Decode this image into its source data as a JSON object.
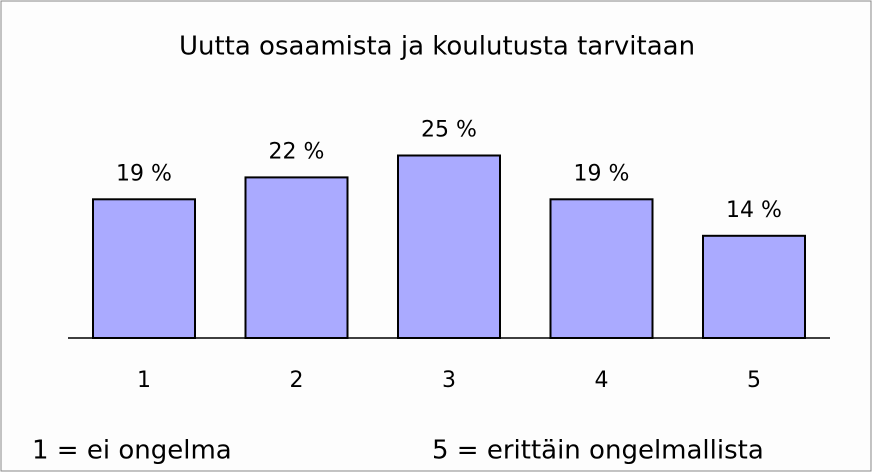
{
  "chart_data": {
    "type": "bar",
    "title": "Uutta osaamista ja koulutusta tarvitaan",
    "categories": [
      "1",
      "2",
      "3",
      "4",
      "5"
    ],
    "values": [
      19,
      22,
      25,
      19,
      14
    ],
    "value_labels": [
      "19 %",
      "22 %",
      "25 %",
      "19 %",
      "14 %"
    ],
    "color": "#aaaaff",
    "annotations": [
      "1 = ei ongelma",
      "5 = erittäin ongelmallista"
    ]
  }
}
